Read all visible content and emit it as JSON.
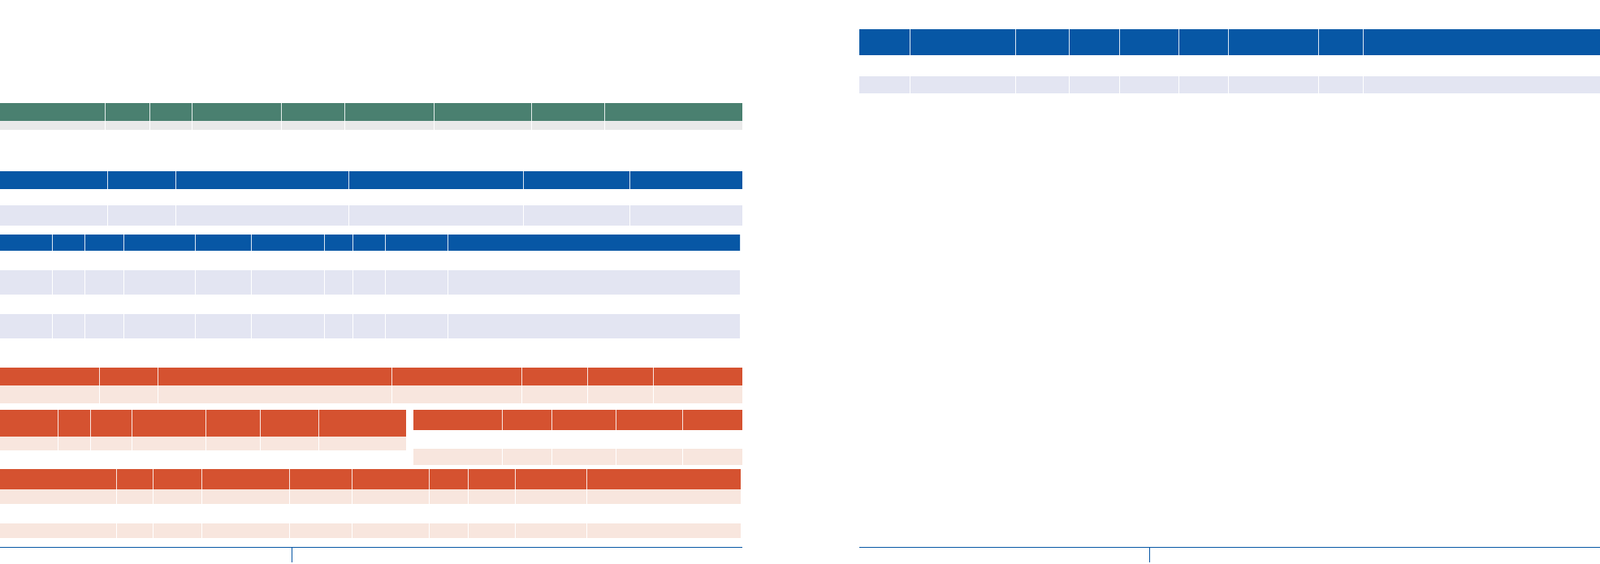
{
  "colors": {
    "green_header": "#4a8070",
    "green_row": "#e9e9e9",
    "blue_header": "#0757a5",
    "blue_row": "#e3e5f2",
    "orange_header": "#d55230",
    "orange_row": "#f8e6de",
    "footer_rule": "#0757a5"
  },
  "left_page": {
    "tables": [
      {
        "id": "green-table",
        "theme": "green",
        "rows": [
          {
            "kind": "header",
            "cells": [
              "",
              "",
              "",
              "",
              "",
              "",
              "",
              "",
              ""
            ]
          },
          {
            "kind": "body",
            "cells": [
              "",
              "",
              "",
              "",
              "",
              "",
              "",
              "",
              ""
            ]
          }
        ]
      },
      {
        "id": "blue-table-1",
        "theme": "blue",
        "rows": [
          {
            "kind": "header",
            "cells": [
              "",
              "",
              "",
              "",
              "",
              ""
            ]
          },
          {
            "kind": "body",
            "cells": [
              "",
              "",
              "",
              "",
              "",
              ""
            ]
          }
        ]
      },
      {
        "id": "blue-table-2",
        "theme": "blue",
        "rows": [
          {
            "kind": "header",
            "cells": [
              "",
              "",
              "",
              "",
              "",
              "",
              "",
              "",
              "",
              "",
              ""
            ]
          },
          {
            "kind": "body",
            "cells": [
              "",
              "",
              "",
              "",
              "",
              "",
              "",
              "",
              "",
              "",
              ""
            ]
          },
          {
            "kind": "body",
            "cells": [
              "",
              "",
              "",
              "",
              "",
              "",
              "",
              "",
              "",
              "",
              ""
            ]
          }
        ]
      },
      {
        "id": "orange-table-1",
        "theme": "orange",
        "rows": [
          {
            "kind": "header",
            "cells": [
              "",
              "",
              "",
              "",
              "",
              "",
              ""
            ]
          },
          {
            "kind": "body",
            "cells": [
              "",
              "",
              "",
              "",
              "",
              "",
              ""
            ]
          }
        ]
      },
      {
        "id": "orange-table-2",
        "theme": "orange",
        "rows": [
          {
            "kind": "header",
            "cells": [
              "",
              "",
              "",
              "",
              "",
              "",
              ""
            ]
          },
          {
            "kind": "body",
            "cells": [
              "",
              "",
              "",
              "",
              "",
              "",
              ""
            ]
          }
        ]
      },
      {
        "id": "orange-table-3",
        "theme": "orange",
        "rows": [
          {
            "kind": "header",
            "cells": [
              "",
              "",
              "",
              "",
              ""
            ]
          },
          {
            "kind": "body",
            "cells": [
              "",
              "",
              "",
              "",
              ""
            ]
          }
        ]
      },
      {
        "id": "orange-table-4",
        "theme": "orange",
        "rows": [
          {
            "kind": "header",
            "cells": [
              "",
              "",
              "",
              "",
              "",
              "",
              "",
              "",
              "",
              ""
            ]
          },
          {
            "kind": "body",
            "cells": [
              "",
              "",
              "",
              "",
              "",
              "",
              "",
              "",
              "",
              ""
            ]
          },
          {
            "kind": "body",
            "cells": [
              "",
              "",
              "",
              "",
              "",
              "",
              "",
              "",
              "",
              ""
            ]
          }
        ]
      }
    ]
  },
  "right_page": {
    "tables": [
      {
        "id": "blue-table-right",
        "theme": "blue",
        "rows": [
          {
            "kind": "header",
            "cells": [
              "",
              "",
              "",
              "",
              "",
              "",
              "",
              "",
              ""
            ]
          },
          {
            "kind": "body",
            "cells": [
              "",
              "",
              "",
              "",
              "",
              "",
              "",
              "",
              ""
            ]
          }
        ]
      }
    ]
  }
}
